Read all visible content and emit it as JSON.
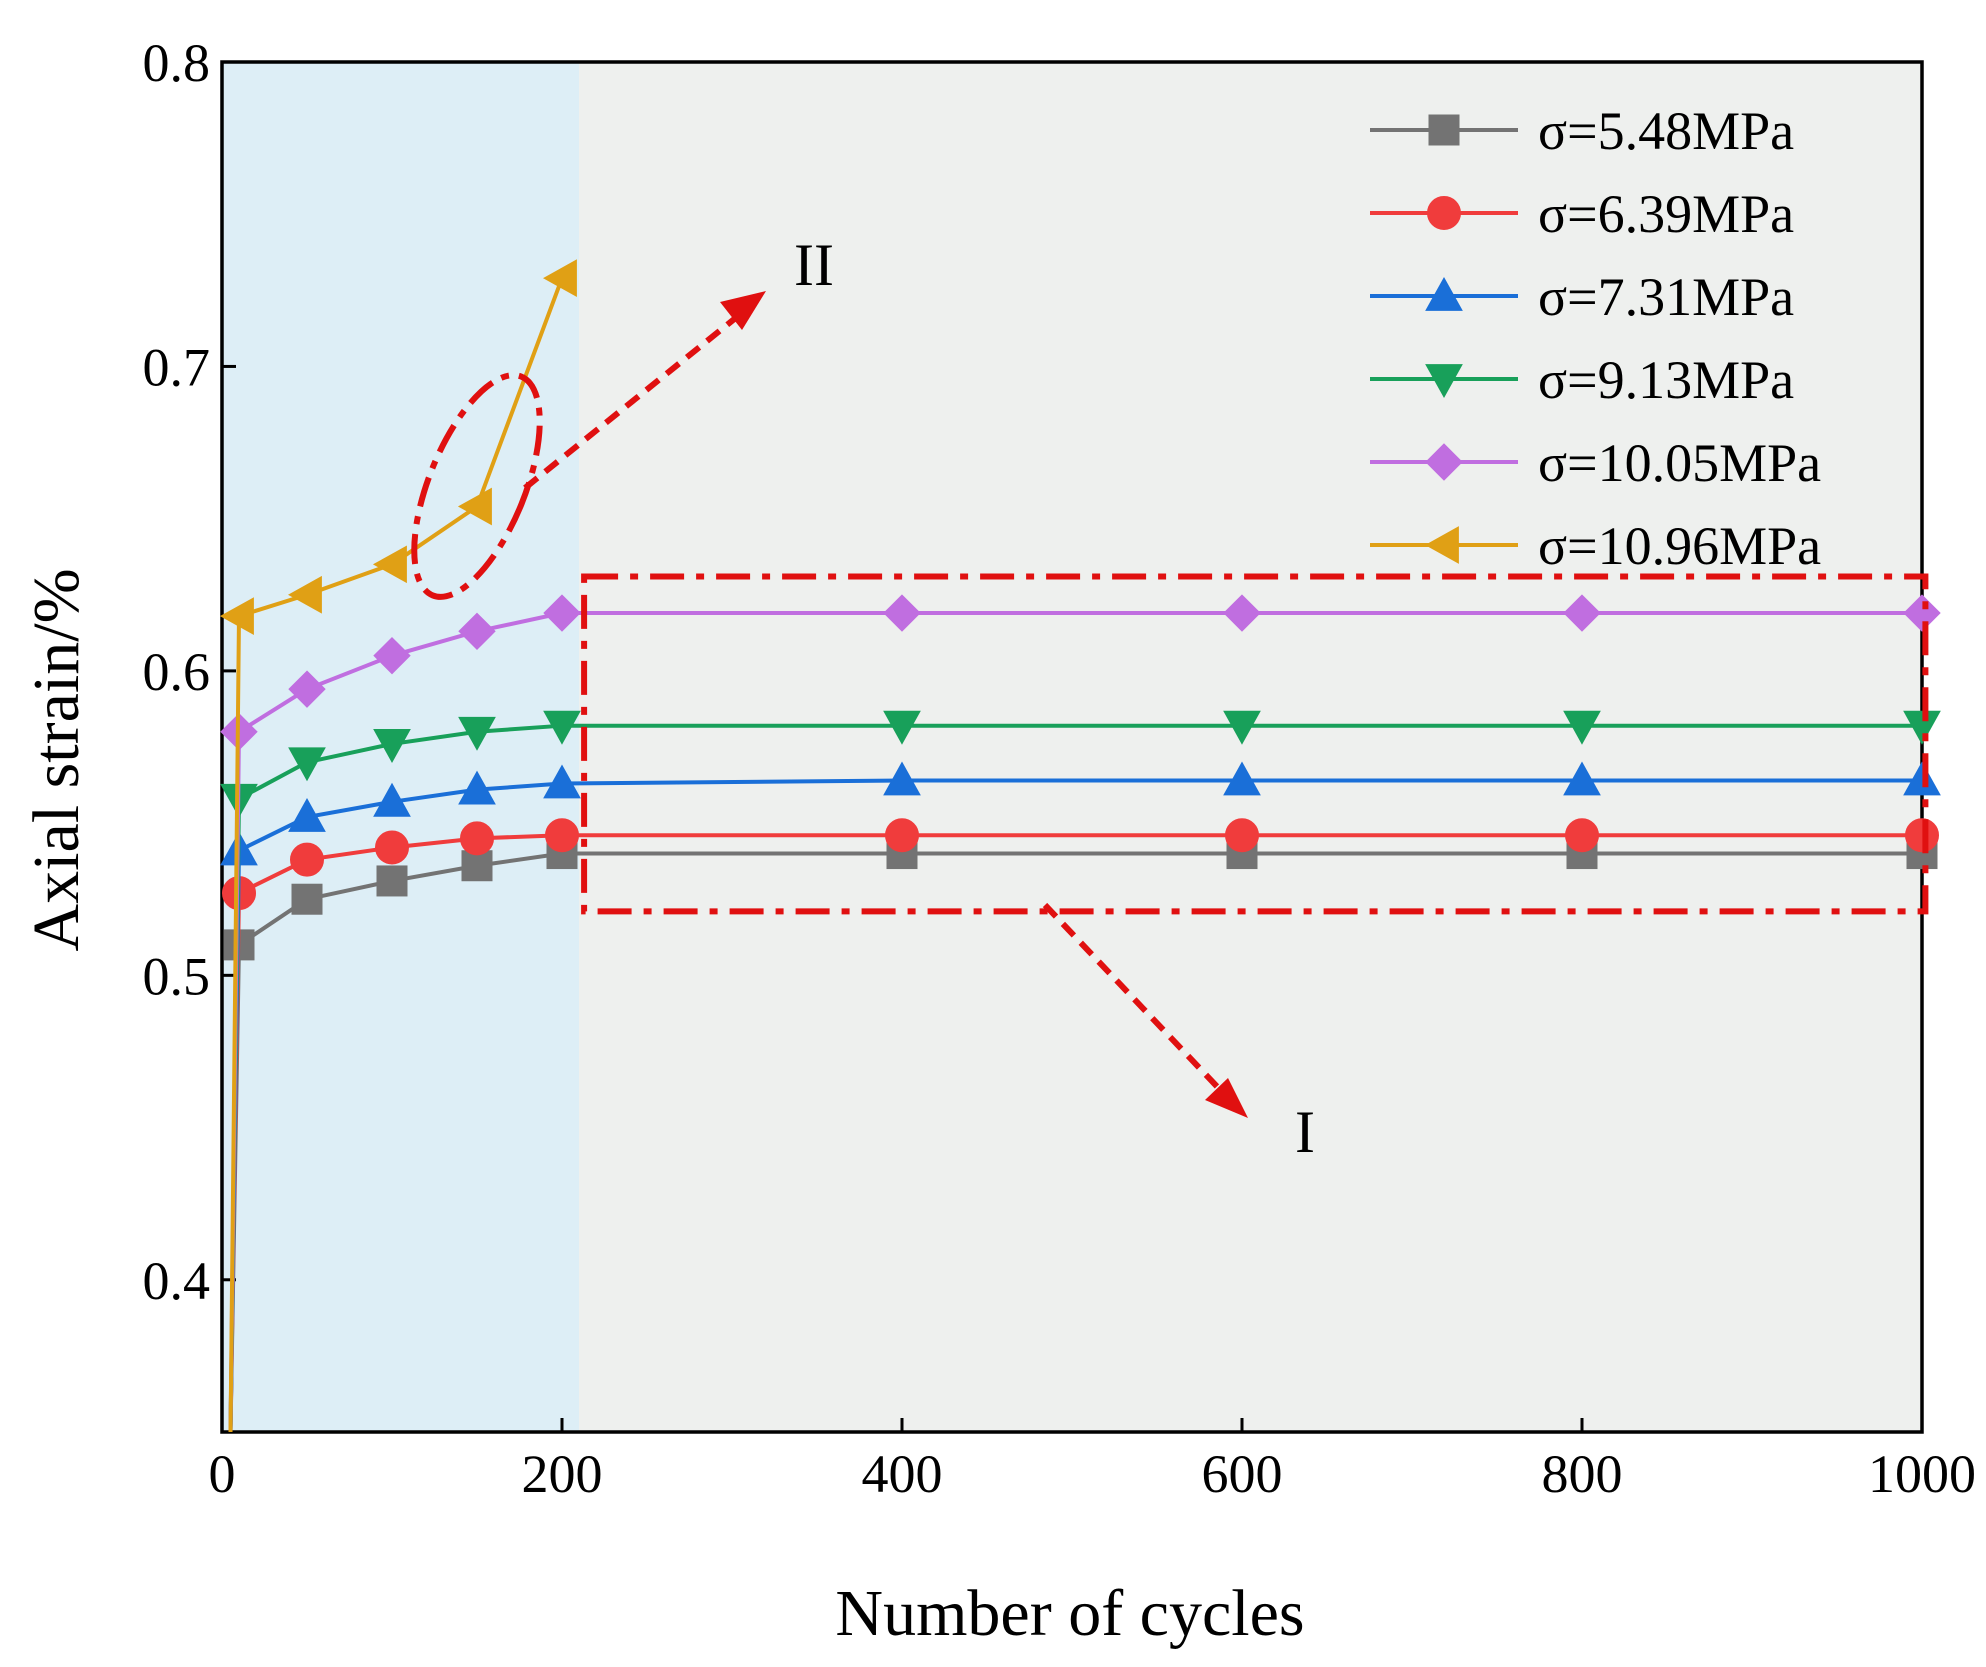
{
  "chart_data": {
    "type": "line",
    "title": "",
    "xlabel": "Number of cycles",
    "ylabel": "Axial strain/%",
    "xlim": [
      0,
      1000
    ],
    "ylim": [
      0.35,
      0.8
    ],
    "xticks": [
      0,
      200,
      400,
      600,
      800,
      1000
    ],
    "yticks": [
      0.4,
      0.5,
      0.6,
      0.7,
      0.8
    ],
    "xtick_labels": [
      "0",
      "200",
      "400",
      "600",
      "800",
      "1000"
    ],
    "ytick_labels": [
      "0.4",
      "0.5",
      "0.6",
      "0.7",
      "0.8"
    ],
    "legend_position": "top-right",
    "shaded_regions": [
      {
        "x": [
          0,
          210
        ],
        "color": "#ddeef6"
      },
      {
        "x": [
          210,
          1000
        ],
        "color": "#eef0ee"
      }
    ],
    "series": [
      {
        "name": "σ=5.48MPa",
        "color": "#737373",
        "marker": "square",
        "x": [
          5,
          10,
          50,
          100,
          150,
          200,
          400,
          600,
          800,
          1000
        ],
        "y": [
          0.35,
          0.51,
          0.525,
          0.531,
          0.536,
          0.54,
          0.54,
          0.54,
          0.54,
          0.54
        ]
      },
      {
        "name": "σ=6.39MPa",
        "color": "#f03c3c",
        "marker": "circle",
        "x": [
          5,
          10,
          50,
          100,
          150,
          200,
          400,
          600,
          800,
          1000
        ],
        "y": [
          0.35,
          0.527,
          0.538,
          0.542,
          0.545,
          0.546,
          0.546,
          0.546,
          0.546,
          0.546
        ]
      },
      {
        "name": "σ=7.31MPa",
        "color": "#1a6fd8",
        "marker": "triangle-up",
        "x": [
          5,
          10,
          50,
          100,
          150,
          200,
          400,
          600,
          800,
          1000
        ],
        "y": [
          0.35,
          0.541,
          0.552,
          0.557,
          0.561,
          0.563,
          0.564,
          0.564,
          0.564,
          0.564
        ]
      },
      {
        "name": "σ=9.13MPa",
        "color": "#18a05a",
        "marker": "triangle-down",
        "x": [
          5,
          10,
          50,
          100,
          150,
          200,
          400,
          600,
          800,
          1000
        ],
        "y": [
          0.35,
          0.558,
          0.57,
          0.576,
          0.58,
          0.582,
          0.582,
          0.582,
          0.582,
          0.582
        ]
      },
      {
        "name": "σ=10.05MPa",
        "color": "#c06ee0",
        "marker": "diamond",
        "x": [
          5,
          10,
          50,
          100,
          150,
          200,
          400,
          600,
          800,
          1000
        ],
        "y": [
          0.35,
          0.58,
          0.594,
          0.605,
          0.613,
          0.619,
          0.619,
          0.619,
          0.619,
          0.619
        ]
      },
      {
        "name": "σ=10.96MPa",
        "color": "#e0a015",
        "marker": "triangle-left",
        "x": [
          5,
          10,
          50,
          100,
          150,
          200
        ],
        "y": [
          0.35,
          0.618,
          0.625,
          0.635,
          0.654,
          0.729
        ]
      }
    ],
    "annotations": [
      {
        "label": "I",
        "note": "dash-dot box around steady-state portion"
      },
      {
        "label": "II",
        "note": "dashed ellipse around sharp rise of σ=10.96MPa"
      }
    ]
  }
}
